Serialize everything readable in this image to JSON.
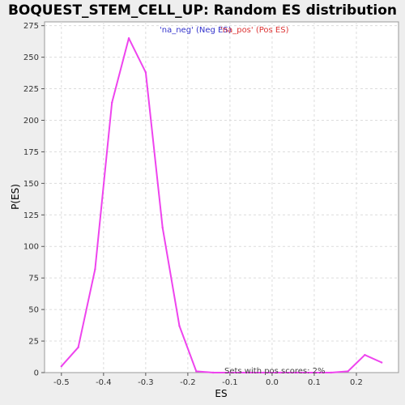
{
  "chart_data": {
    "type": "line",
    "title": "BOQUEST_STEM_CELL_UP: Random ES distribution",
    "xlabel": "ES",
    "ylabel": "P(ES)",
    "xlim": [
      -0.54,
      0.3
    ],
    "ylim": [
      0,
      278
    ],
    "x_ticks": [
      "-0.5",
      "-0.4",
      "-0.3",
      "-0.2",
      "-0.1",
      "0.0",
      "0.1",
      "0.2"
    ],
    "y_ticks": [
      "0",
      "25",
      "50",
      "75",
      "100",
      "125",
      "150",
      "175",
      "200",
      "225",
      "250",
      "275"
    ],
    "grid": true,
    "legend": {
      "placement": "top-center",
      "entries": [
        {
          "label": "'na_neg' (Neg ES)",
          "color": "#3333cc"
        },
        {
          "label": "'na_pos' (Pos ES)",
          "color": "#dd3333"
        }
      ]
    },
    "annotation": "Sets with pos scores: 2%",
    "series": [
      {
        "color": "#ee44ee",
        "x": [
          -0.5,
          -0.46,
          -0.42,
          -0.38,
          -0.34,
          -0.3,
          -0.26,
          -0.22,
          -0.18,
          -0.14,
          -0.1,
          -0.06,
          -0.02,
          0.02,
          0.06,
          0.1,
          0.14,
          0.18,
          0.22,
          0.26
        ],
        "y": [
          5,
          20,
          82,
          214,
          265,
          238,
          115,
          37,
          1,
          0,
          0,
          0,
          0,
          0,
          0,
          0,
          0,
          1,
          14,
          8
        ]
      }
    ]
  }
}
